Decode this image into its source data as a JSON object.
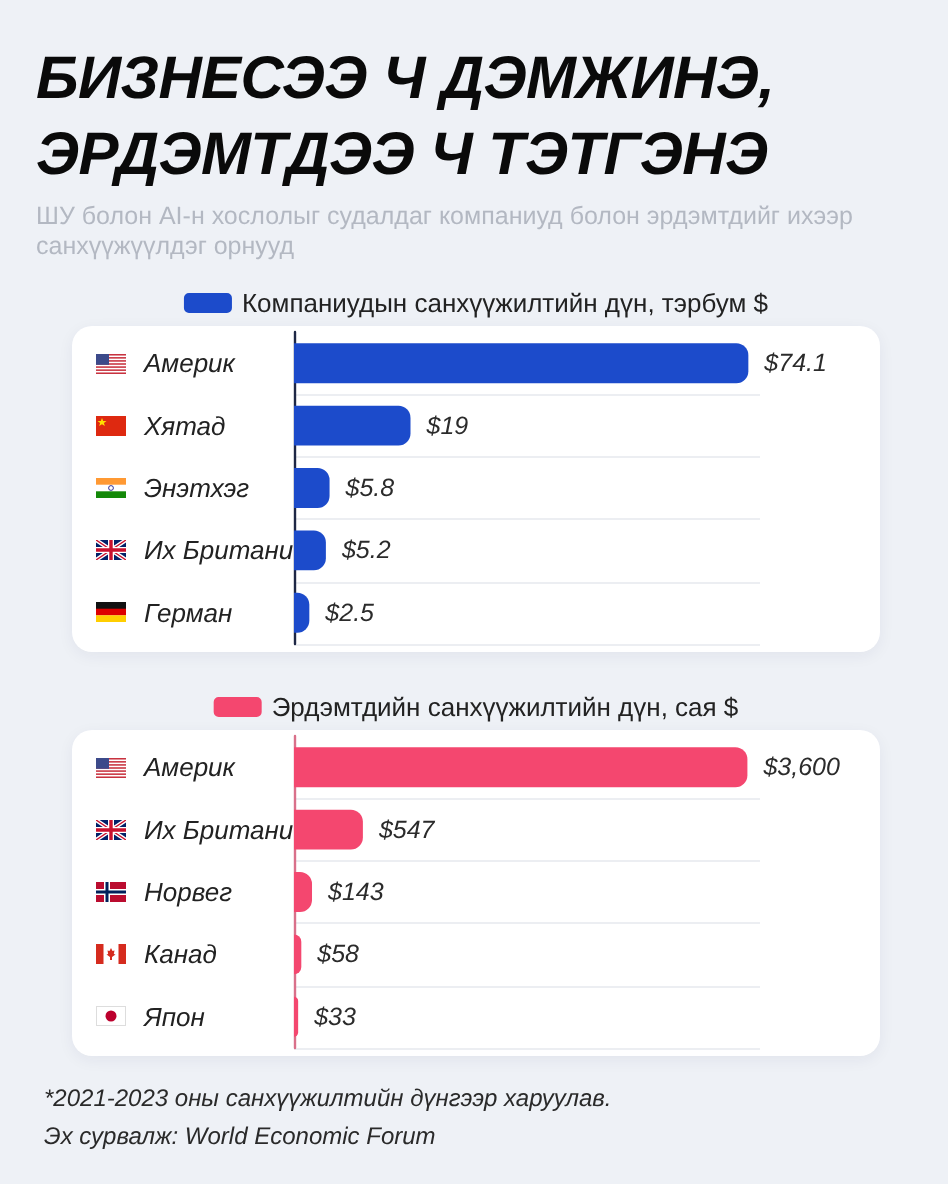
{
  "chart_data": [
    {
      "type": "bar",
      "orientation": "horizontal",
      "title": "БИЗНЕСЭЭ Ч ДЭМЖИНЭ, ЭРДЭМТДЭЭ Ч ТЭТГЭНЭ",
      "subtitle": "ШУ болон AI-н хослолыг судалдаг компаниуд болон эрдэмтдийг ихээр санхүүжүүлдэг орнууд",
      "categories": [
        "Америк",
        "Хятад",
        "Энэтхэг",
        "Их Британи",
        "Герман"
      ],
      "series": [
        {
          "name": "Компаниудын санхүүжилтийн дүн, тэрбум $",
          "color": "#1c4bcb",
          "values": [
            74.1,
            19,
            5.8,
            5.2,
            2.5
          ],
          "value_labels": [
            "$74.1",
            "$19",
            "$5.8",
            "$5.2",
            "$2.5"
          ]
        }
      ],
      "xlim": [
        0,
        76
      ],
      "tick_labels": "y",
      "grid": "y",
      "legend": "top"
    },
    {
      "type": "bar",
      "orientation": "horizontal",
      "categories": [
        "Америк",
        "Их Британи",
        "Норвег",
        "Канад",
        "Япон"
      ],
      "series": [
        {
          "name": "Эрдэмтдийн санхүүжилтийн дүн, сая $",
          "color": "#f4476f",
          "values": [
            3600,
            547,
            143,
            58,
            33
          ],
          "value_labels": [
            "$3,600",
            "$547",
            "$143",
            "$58",
            "$33"
          ]
        }
      ],
      "xlim": [
        0,
        3700
      ],
      "tick_labels": "y",
      "grid": "y",
      "legend": "top",
      "annotations": [
        "*2021-2023 оны санхүүжилтийн дүнгээр харуулав.",
        "Эх сурвалж: World Economic Forum"
      ]
    }
  ]
}
